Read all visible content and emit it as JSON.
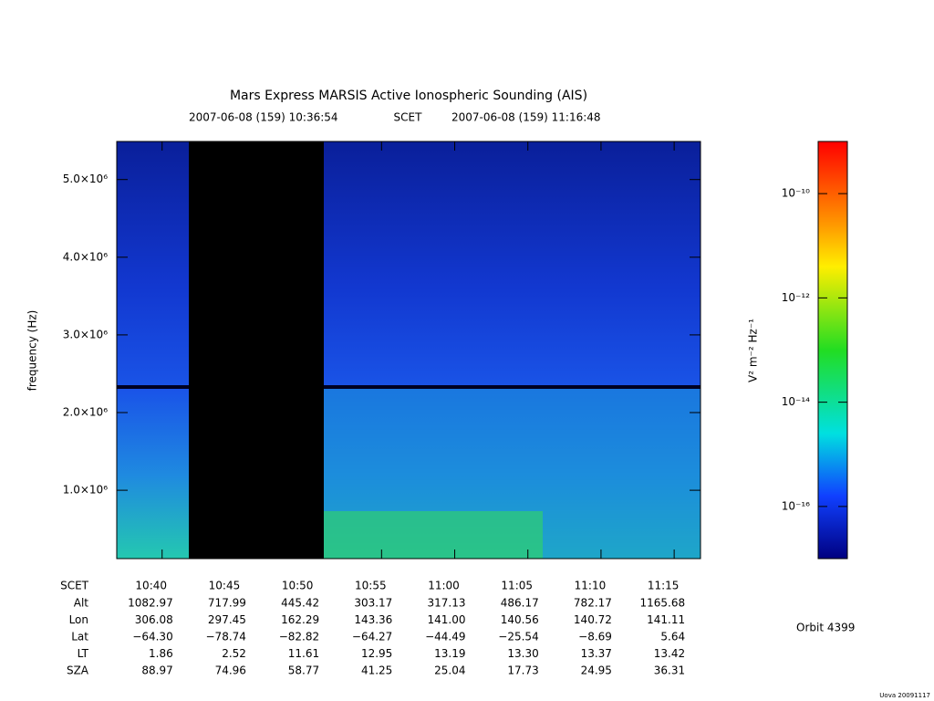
{
  "chart_data": {
    "type": "spectrogram",
    "title": "Mars Express MARSIS Active Ionospheric Sounding (AIS)",
    "start_time": "2007-06-08 (159) 10:36:54",
    "time_system": "SCET",
    "end_time": "2007-06-08 (159) 11:16:48",
    "ylabel": "frequency (Hz)",
    "xlim": [
      636.9,
      676.8
    ],
    "xticks": [
      {
        "value": 640,
        "label": "10:40"
      },
      {
        "value": 645,
        "label": "10:45"
      },
      {
        "value": 650,
        "label": "10:50"
      },
      {
        "value": 655,
        "label": "10:55"
      },
      {
        "value": 660,
        "label": "11:00"
      },
      {
        "value": 665,
        "label": "11:05"
      },
      {
        "value": 670,
        "label": "11:10"
      },
      {
        "value": 675,
        "label": "11:15"
      }
    ],
    "ylim": [
      120000,
      5490000
    ],
    "yticks": [
      {
        "value": 1000000,
        "label": "1.0×10⁶"
      },
      {
        "value": 2000000,
        "label": "2.0×10⁶"
      },
      {
        "value": 3000000,
        "label": "3.0×10⁶"
      },
      {
        "value": 4000000,
        "label": "4.0×10⁶"
      },
      {
        "value": 5000000,
        "label": "5.0×10⁶"
      }
    ],
    "colorbar": {
      "label": "V² m⁻² Hz⁻¹",
      "log": true,
      "clim": [
        -17,
        -9
      ],
      "ticks": [
        {
          "value": -10,
          "label": "10⁻¹⁰"
        },
        {
          "value": -12,
          "label": "10⁻¹²"
        },
        {
          "value": -14,
          "label": "10⁻¹⁴"
        },
        {
          "value": -16,
          "label": "10⁻¹⁶"
        }
      ]
    },
    "ephemeris": {
      "time_label": "SCET",
      "rows": [
        {
          "label": "Alt",
          "values": [
            "1082.97",
            "717.99",
            "445.42",
            "303.17",
            "317.13",
            "486.17",
            "782.17",
            "1165.68"
          ]
        },
        {
          "label": "Lon",
          "values": [
            "306.08",
            "297.45",
            "162.29",
            "143.36",
            "141.00",
            "140.56",
            "140.72",
            "141.11"
          ]
        },
        {
          "label": "Lat",
          "values": [
            "−64.30",
            "−78.74",
            "−82.82",
            "−64.27",
            "−44.49",
            "−25.54",
            "−8.69",
            "5.64"
          ]
        },
        {
          "label": "LT",
          "values": [
            "1.86",
            "2.52",
            "11.61",
            "12.95",
            "13.19",
            "13.30",
            "13.37",
            "13.42"
          ]
        },
        {
          "label": "SZA",
          "values": [
            "88.97",
            "74.96",
            "58.77",
            "41.25",
            "25.04",
            "17.73",
            "24.95",
            "36.31"
          ]
        }
      ]
    },
    "orbit": "Orbit 4399",
    "footer": "Uova 20091117"
  }
}
